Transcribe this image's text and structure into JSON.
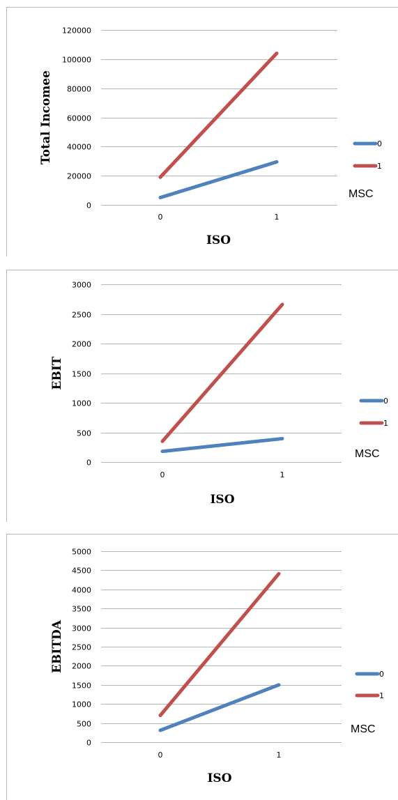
{
  "chart_data": [
    {
      "type": "line",
      "ylabel": "Total Incomee",
      "xlabel": "ISO",
      "categories": [
        "0",
        "1"
      ],
      "ylim": [
        0,
        120000
      ],
      "yticks": [
        0,
        20000,
        40000,
        60000,
        80000,
        100000,
        120000
      ],
      "yticks_text": [
        "0",
        "20000",
        "40000",
        "60000",
        "80000",
        "100000",
        "120000"
      ],
      "grid": true,
      "legend": {
        "title": "MSC",
        "position": "right"
      },
      "series": [
        {
          "name": "0",
          "color": "#4f81bd",
          "values": [
            5000,
            29500
          ]
        },
        {
          "name": "1",
          "color": "#c0504d",
          "values": [
            19000,
            104000
          ]
        }
      ]
    },
    {
      "type": "line",
      "ylabel": "EBIT",
      "xlabel": "ISO",
      "categories": [
        "0",
        "1"
      ],
      "ylim": [
        0,
        3000
      ],
      "yticks": [
        0,
        500,
        1000,
        1500,
        2000,
        2500,
        3000
      ],
      "yticks_text": [
        "0",
        "500",
        "1000",
        "1500",
        "2000",
        "2500",
        "3000"
      ],
      "grid": true,
      "legend": {
        "title": "MSC",
        "position": "right"
      },
      "series": [
        {
          "name": "0",
          "color": "#4f81bd",
          "values": [
            180,
            395
          ]
        },
        {
          "name": "1",
          "color": "#c0504d",
          "values": [
            350,
            2660
          ]
        }
      ]
    },
    {
      "type": "line",
      "ylabel": "EBITDA",
      "xlabel": "ISO",
      "categories": [
        "0",
        "1"
      ],
      "ylim": [
        0,
        5000
      ],
      "yticks": [
        0,
        500,
        1000,
        1500,
        2000,
        2500,
        3000,
        3500,
        4000,
        4500,
        5000
      ],
      "yticks_text": [
        "0",
        "500",
        "1000",
        "1500",
        "2000",
        "2500",
        "3000",
        "3500",
        "4000",
        "4500",
        "5000"
      ],
      "grid": true,
      "legend": {
        "title": "MSC",
        "position": "right"
      },
      "series": [
        {
          "name": "0",
          "color": "#4f81bd",
          "values": [
            310,
            1500
          ]
        },
        {
          "name": "1",
          "color": "#c0504d",
          "values": [
            700,
            4410
          ]
        }
      ]
    }
  ]
}
